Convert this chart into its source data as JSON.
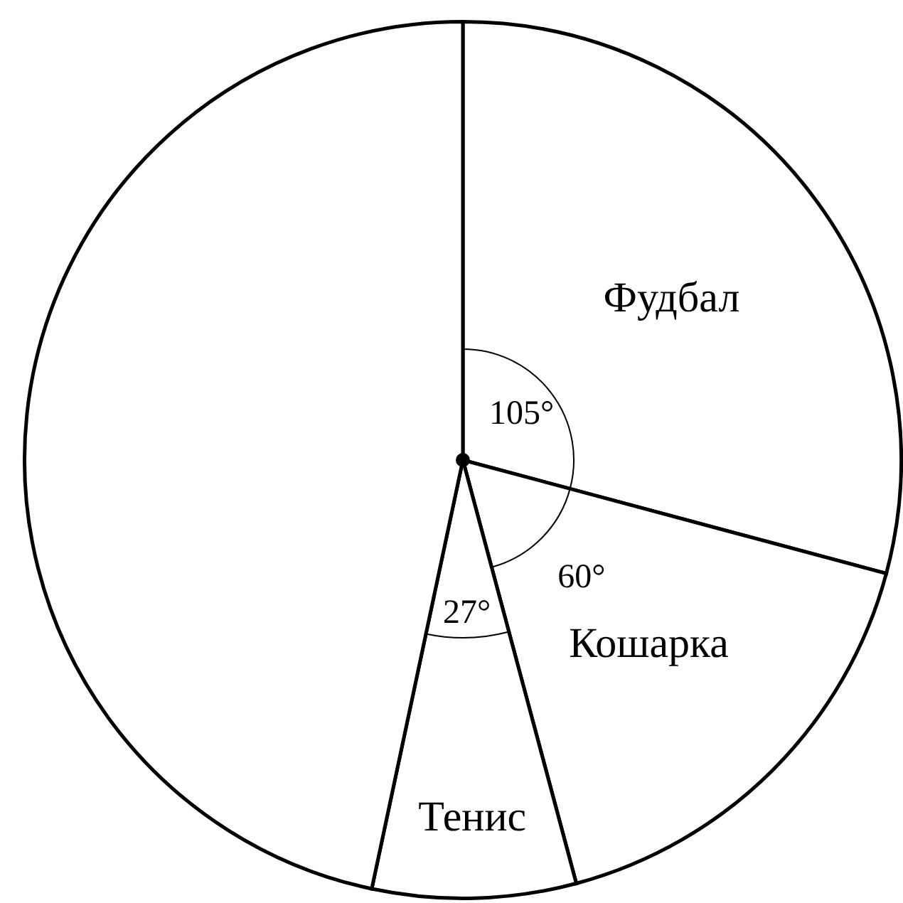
{
  "chart_data": {
    "type": "pie",
    "categories": [
      "Фудбал",
      "Кошарка",
      "Тенис",
      null
    ],
    "values": [
      105,
      60,
      27,
      168
    ],
    "colors": [
      "#ffffff",
      "#ffffff",
      "#ffffff",
      "#ffffff"
    ],
    "value_labels": [
      "105°",
      "60°",
      "27°",
      null
    ],
    "legend": false
  }
}
